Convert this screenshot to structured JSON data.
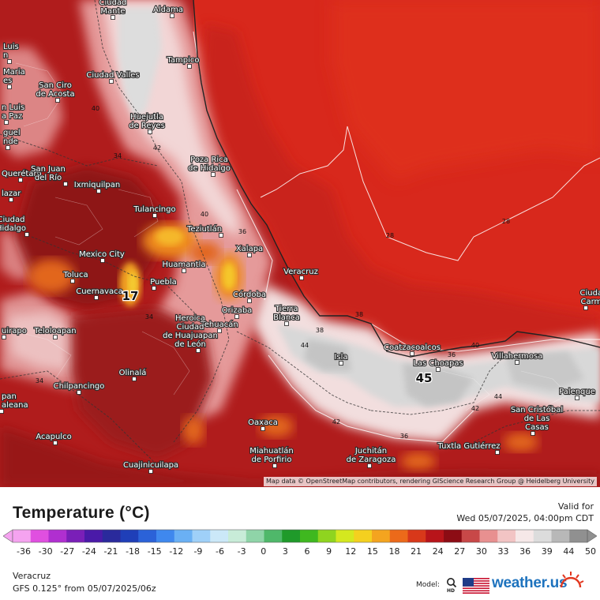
{
  "map": {
    "cities": [
      {
        "name": "Ciudad\nMante"
      },
      {
        "name": "Aldama"
      },
      {
        "name": "Tampico"
      },
      {
        "name": "Luis\nn"
      },
      {
        "name": "Maria\nes"
      },
      {
        "name": "Ciudad Valles"
      },
      {
        "name": "San Ciro\nde Acosta"
      },
      {
        "name": "n Luis\na Paz"
      },
      {
        "name": "Huejutla\nde Reyes"
      },
      {
        "name": "guel\nnde"
      },
      {
        "name": "Poza Rica\nde Hidalgo"
      },
      {
        "name": "Querétaro"
      },
      {
        "name": "San Juan\ndel Río"
      },
      {
        "name": "Ixmiquilpan"
      },
      {
        "name": "lazar"
      },
      {
        "name": "Tulancingo"
      },
      {
        "name": "Ciudad\nHidalgo"
      },
      {
        "name": "Teziutlán"
      },
      {
        "name": "Xalapa"
      },
      {
        "name": "Mexico City"
      },
      {
        "name": "Huamantla"
      },
      {
        "name": "Veracruz"
      },
      {
        "name": "Toluca"
      },
      {
        "name": "Cuernavaca"
      },
      {
        "name": "Puebla"
      },
      {
        "name": "Córdoba"
      },
      {
        "name": "Orizaba"
      },
      {
        "name": "Tierra\nBlanca"
      },
      {
        "name": "Ciudad\nCarme"
      },
      {
        "name": "Tehuacán"
      },
      {
        "name": "Teloloapan"
      },
      {
        "name": "uirapo"
      },
      {
        "name": "Coatzacoalcos"
      },
      {
        "name": "Las Choapas"
      },
      {
        "name": "Villahermosa"
      },
      {
        "name": "Isla"
      },
      {
        "name": "Heroica\nCiudad\nde Huajuapan\nde León"
      },
      {
        "name": "Olinalá"
      },
      {
        "name": "Chilpancingo"
      },
      {
        "name": "Palenque"
      },
      {
        "name": "pan\naleana"
      },
      {
        "name": "Oaxaca"
      },
      {
        "name": "Acapulco"
      },
      {
        "name": "San Cristóbal\nde Las\nCasas"
      },
      {
        "name": "Tuxtla Gutiérrez"
      },
      {
        "name": "Juchitán\nde Zaragoza"
      },
      {
        "name": "Miahuatlán\nde Porfirio"
      },
      {
        "name": "Cuajinicuilapa"
      }
    ],
    "contour_labels": [
      "40",
      "34",
      "42",
      "40",
      "36",
      "28",
      "28",
      "17",
      "34",
      "38",
      "44",
      "38",
      "40",
      "36",
      "45",
      "42",
      "44",
      "42",
      "36",
      "34"
    ],
    "attribution": "Map data © OpenStreetMap contributors, rendering GIScience Research Group @ Heidelberg University",
    "colors": {
      "gulf": "#d8281c",
      "land_hot": "#b81e1e",
      "land_dark": "#9c1418",
      "land_warm": "#cf3a26",
      "pink": "#e8a7a7",
      "pale": "#f2dede",
      "grey": "#dadada",
      "orange": "#ee7a1d",
      "yellow": "#f5c225"
    }
  },
  "legend": {
    "title": "Temperature (°C)",
    "valid_label": "Valid for",
    "valid_time": "Wed 05/07/2025, 04:00pm CDT",
    "ticks": [
      "-36",
      "-30",
      "-27",
      "-24",
      "-21",
      "-18",
      "-15",
      "-12",
      "-9",
      "-6",
      "-3",
      "0",
      "3",
      "6",
      "9",
      "12",
      "15",
      "18",
      "21",
      "24",
      "27",
      "30",
      "33",
      "36",
      "39",
      "44",
      "50"
    ],
    "tick_values": [
      -36,
      -30,
      -27,
      -24,
      -21,
      -18,
      -15,
      -12,
      -9,
      -6,
      -3,
      0,
      3,
      6,
      9,
      12,
      15,
      18,
      21,
      24,
      27,
      30,
      33,
      36,
      39,
      44,
      50
    ],
    "colorbar_colors": [
      "#f5a3f0",
      "#e04fe0",
      "#b02fd0",
      "#7a1fb8",
      "#4a1aa8",
      "#2a2a9c",
      "#1f3fb8",
      "#2b62d8",
      "#3f88ee",
      "#6ab0f4",
      "#9fd0f8",
      "#cbe8f8",
      "#c8ecd8",
      "#8fd4a8",
      "#4fb86a",
      "#1f9a2a",
      "#3fb81f",
      "#8fd41f",
      "#d4e81f",
      "#f4d01f",
      "#f4a41f",
      "#ec6a1a",
      "#d8381a",
      "#b8141a",
      "#8c0c14",
      "#c84848",
      "#e89090",
      "#f2c4c4",
      "#f6e8e8",
      "#dcdcdc",
      "#b8b8b8",
      "#909090"
    ]
  },
  "footer": {
    "region": "Veracruz",
    "model_info": "GFS 0.125° from  05/07/2025/06z",
    "model_label": "Model:",
    "brand": "weather.us"
  }
}
